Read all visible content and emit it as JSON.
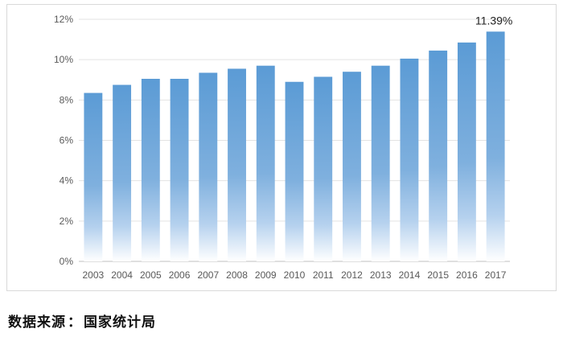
{
  "chart_data": {
    "type": "bar",
    "categories": [
      "2003",
      "2004",
      "2005",
      "2006",
      "2007",
      "2008",
      "2009",
      "2010",
      "2011",
      "2012",
      "2013",
      "2014",
      "2015",
      "2016",
      "2017"
    ],
    "values": [
      8.35,
      8.75,
      9.05,
      9.05,
      9.35,
      9.55,
      9.7,
      8.9,
      9.15,
      9.4,
      9.7,
      10.05,
      10.45,
      10.85,
      11.39
    ],
    "yticks": [
      "0%",
      "2%",
      "4%",
      "6%",
      "8%",
      "10%",
      "12%"
    ],
    "ylim": [
      0,
      12
    ],
    "grid": true,
    "data_labels": [
      {
        "category": "2017",
        "text": "11.39%"
      }
    ],
    "bar_color_top": "#5b9bd5",
    "bar_color_bottom": "#ffffff"
  },
  "source": {
    "label": "数据来源",
    "separator": "：",
    "value": "国家统计局"
  }
}
